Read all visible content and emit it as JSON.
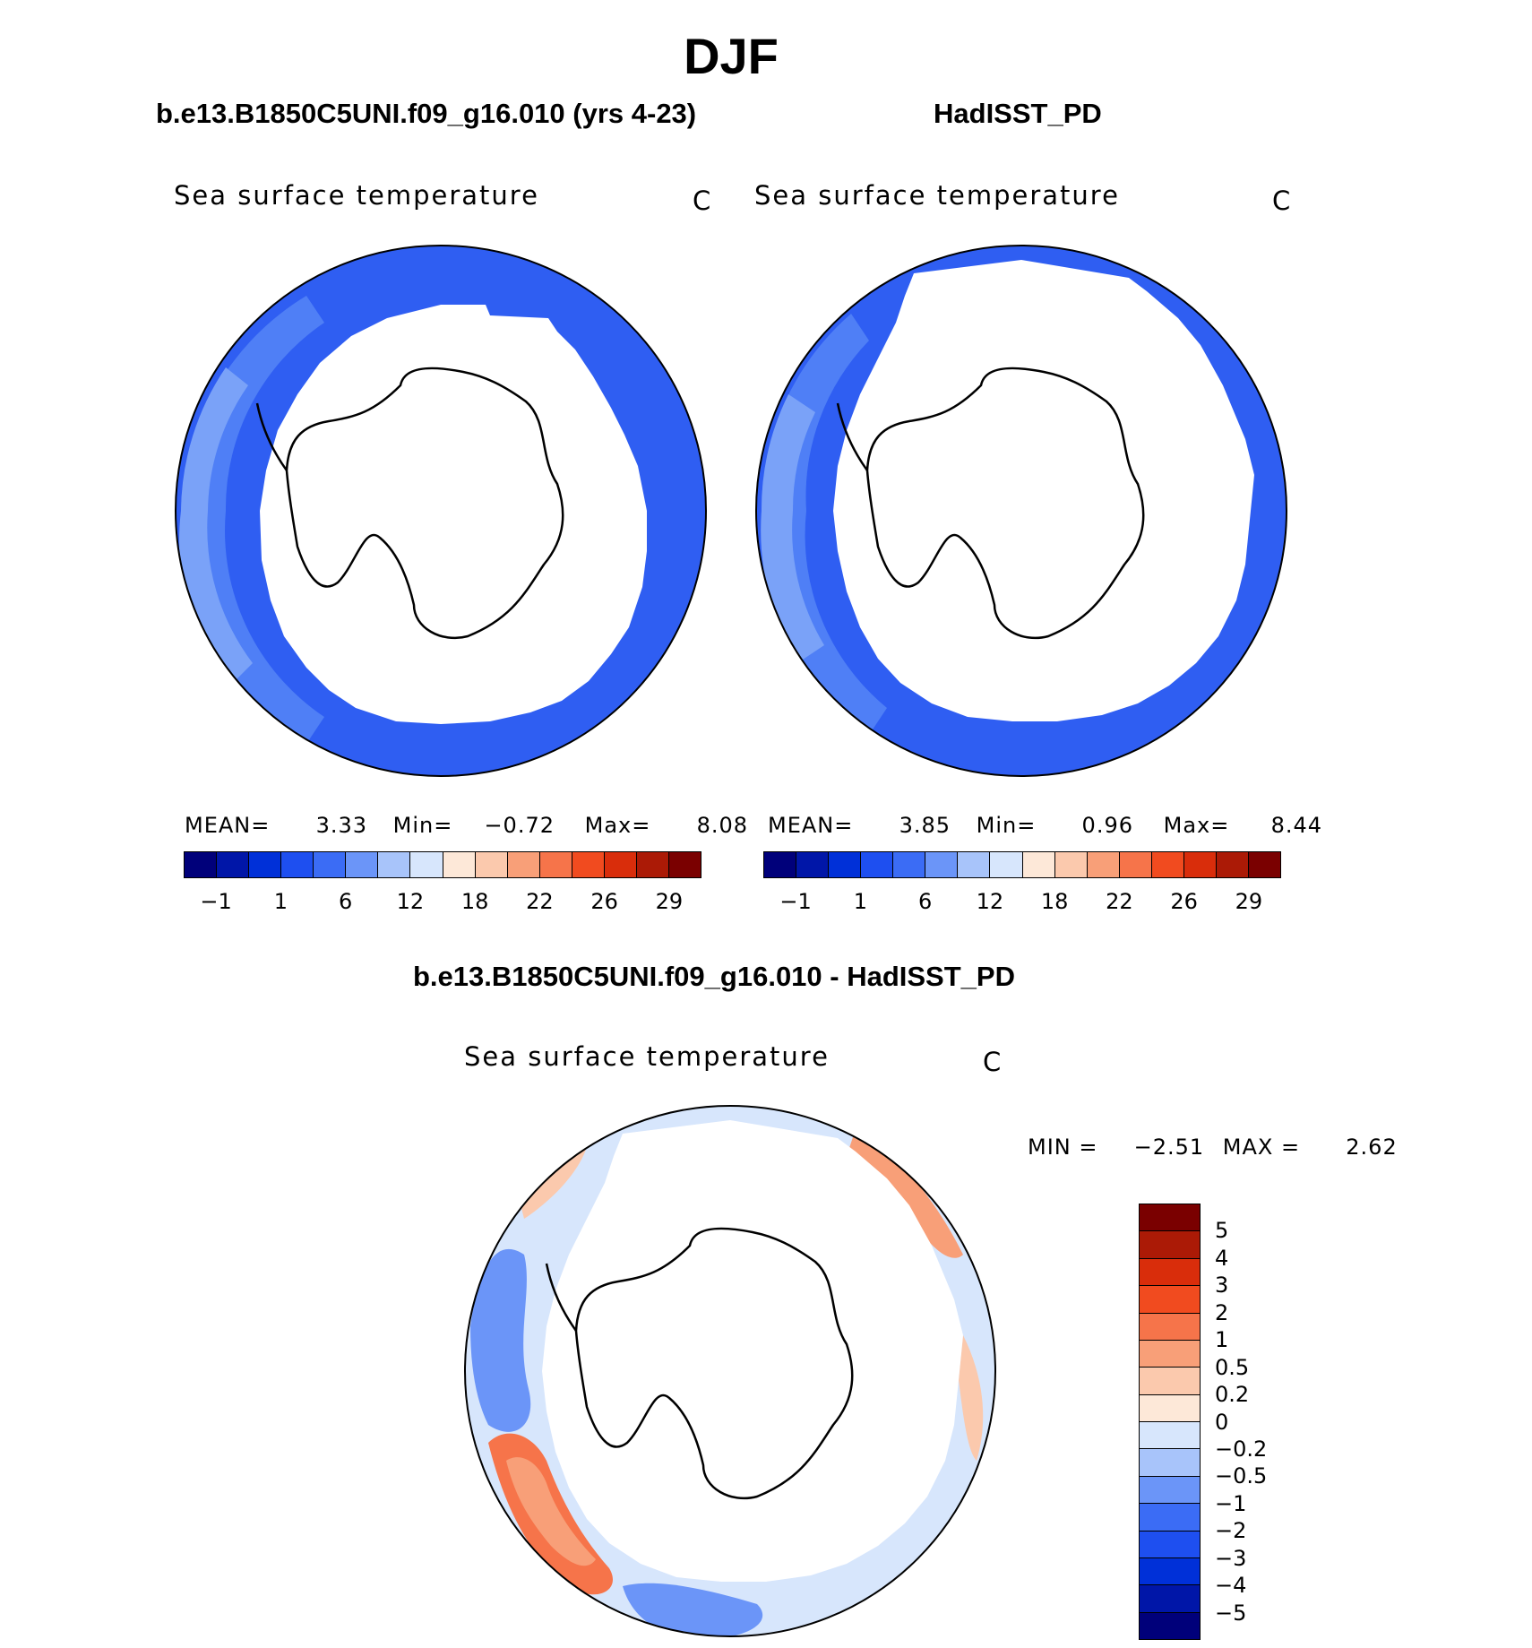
{
  "title": "DJF",
  "colors": {
    "abs_scale": [
      "#00007a",
      "#0016a8",
      "#0030d8",
      "#1e4ff0",
      "#3b6cf5",
      "#6b95f8",
      "#a8c4fa",
      "#d7e6fc",
      "#fde8d8",
      "#fbc9ad",
      "#f89f78",
      "#f6744a",
      "#f14b1f",
      "#d92d0b",
      "#ab1a06",
      "#7a0000"
    ],
    "diff_scale": [
      "#7a0000",
      "#ab1a06",
      "#d92d0b",
      "#f14b1f",
      "#f6744a",
      "#f89f78",
      "#fbc9ad",
      "#fde8d8",
      "#d7e6fc",
      "#a8c4fa",
      "#6b95f8",
      "#3b6cf5",
      "#1e4ff0",
      "#0030d8",
      "#0016a8",
      "#00007a"
    ]
  },
  "chart_data": [
    {
      "type": "heatmap",
      "projection": "south-polar-stereographic",
      "panel_title": "b.e13.B1850C5UNI.f09_g16.010 (yrs 4-23)",
      "variable": "Sea surface temperature",
      "units": "C",
      "stats": {
        "mean_label": "MEAN=",
        "mean": "3.33",
        "min_label": "Min=",
        "min": "−0.72",
        "max_label": "Max=",
        "max": "8.08"
      },
      "colorbar_ticks": [
        "−1",
        "1",
        "6",
        "12",
        "18",
        "22",
        "26",
        "29"
      ],
      "levels": [
        -1,
        0,
        1,
        3,
        6,
        9,
        12,
        15,
        18,
        20,
        22,
        24,
        26,
        28,
        29
      ]
    },
    {
      "type": "heatmap",
      "projection": "south-polar-stereographic",
      "panel_title": "HadISST_PD",
      "variable": "Sea surface temperature",
      "units": "C",
      "stats": {
        "mean_label": "MEAN=",
        "mean": "3.85",
        "min_label": "Min=",
        "min": "0.96",
        "max_label": "Max=",
        "max": "8.44"
      },
      "colorbar_ticks": [
        "−1",
        "1",
        "6",
        "12",
        "18",
        "22",
        "26",
        "29"
      ],
      "levels": [
        -1,
        0,
        1,
        3,
        6,
        9,
        12,
        15,
        18,
        20,
        22,
        24,
        26,
        28,
        29
      ]
    },
    {
      "type": "heatmap",
      "projection": "south-polar-stereographic",
      "panel_title": "b.e13.B1850C5UNI.f09_g16.010 - HadISST_PD",
      "variable": "Sea surface temperature",
      "units": "C",
      "stats": {
        "min_label": "MIN =",
        "min": "−2.51",
        "max_label": "MAX =",
        "max": "2.62"
      },
      "colorbar_ticks": [
        "5",
        "4",
        "3",
        "2",
        "1",
        "0.5",
        "0.2",
        "0",
        "−0.2",
        "−0.5",
        "−1",
        "−2",
        "−3",
        "−4",
        "−5"
      ],
      "levels": [
        5,
        4,
        3,
        2,
        1,
        0.5,
        0.2,
        0,
        -0.2,
        -0.5,
        -1,
        -2,
        -3,
        -4,
        -5
      ]
    }
  ]
}
